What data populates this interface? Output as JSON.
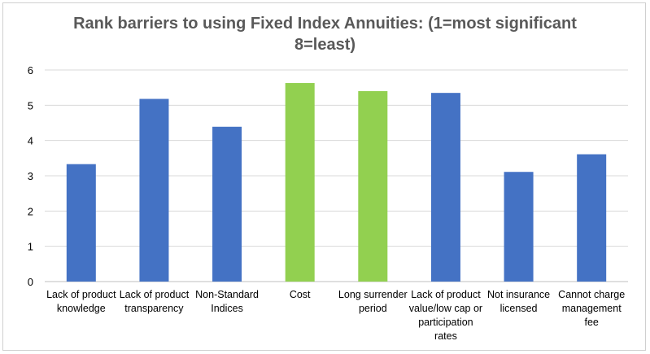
{
  "chart_data": {
    "type": "bar",
    "title": "Rank barriers to using Fixed Index Annuities:   (1=most significant\n8=least)",
    "categories": [
      "Lack of product knowledge",
      "Lack of product transparency",
      "Non-Standard Indices",
      "Cost",
      "Long surrender period",
      "Lack of product value/low cap or participation rates",
      "Not insurance licensed",
      "Cannot charge management fee"
    ],
    "values": [
      3.33,
      5.18,
      4.39,
      5.63,
      5.4,
      5.35,
      3.11,
      3.61
    ],
    "colors": [
      "#4472C4",
      "#4472C4",
      "#4472C4",
      "#92D050",
      "#92D050",
      "#4472C4",
      "#4472C4",
      "#4472C4"
    ],
    "ylim": [
      0,
      6
    ],
    "yticks": [
      "0",
      "1",
      "2",
      "3",
      "4",
      "5",
      "6"
    ],
    "grid": true,
    "xlabel": "",
    "ylabel": ""
  }
}
